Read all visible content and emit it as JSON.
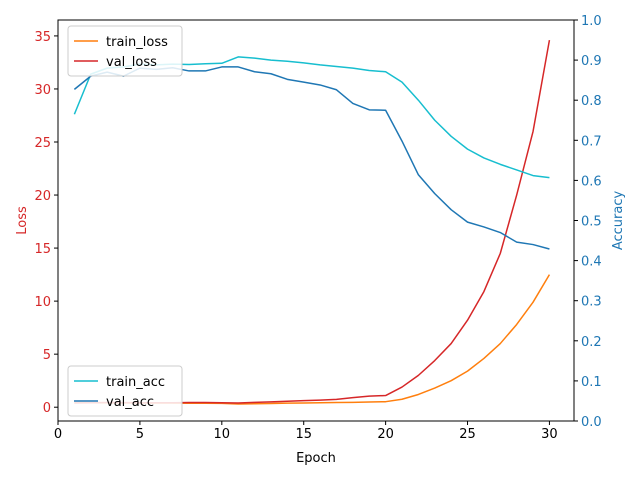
{
  "chart_data": {
    "type": "line",
    "title": "",
    "xlabel": "Epoch",
    "ylabel_left": "Loss",
    "ylabel_right": "Accuracy",
    "xlim": [
      0,
      31.5
    ],
    "ylim_left": [
      -1.3,
      36.5
    ],
    "ylim_right": [
      0.0,
      1.0
    ],
    "x_ticks": [
      0,
      5,
      10,
      15,
      20,
      25,
      30
    ],
    "y_left_ticks": [
      0,
      5,
      10,
      15,
      20,
      25,
      30,
      35
    ],
    "y_right_ticks": [
      0.0,
      0.1,
      0.2,
      0.3,
      0.4,
      0.5,
      0.6,
      0.7,
      0.8,
      0.9,
      1.0
    ],
    "grid": false,
    "x": [
      1,
      2,
      3,
      4,
      5,
      6,
      7,
      8,
      9,
      10,
      11,
      12,
      13,
      14,
      15,
      16,
      17,
      18,
      19,
      20,
      21,
      22,
      23,
      24,
      25,
      26,
      27,
      28,
      29,
      30
    ],
    "series_left": [
      {
        "name": "train_loss",
        "color": "#ff7f0e",
        "values": [
          0.45,
          0.42,
          0.41,
          0.4,
          0.4,
          0.39,
          0.38,
          0.37,
          0.37,
          0.36,
          0.3,
          0.33,
          0.35,
          0.38,
          0.4,
          0.42,
          0.44,
          0.46,
          0.49,
          0.52,
          0.75,
          1.2,
          1.8,
          2.5,
          3.4,
          4.6,
          6.0,
          7.8,
          9.9,
          12.5
        ]
      },
      {
        "name": "val_loss",
        "color": "#d62728",
        "values": [
          0.4,
          0.42,
          0.44,
          0.43,
          0.42,
          0.42,
          0.42,
          0.44,
          0.45,
          0.42,
          0.4,
          0.46,
          0.5,
          0.56,
          0.62,
          0.67,
          0.74,
          0.9,
          1.05,
          1.1,
          1.9,
          3.0,
          4.4,
          6.0,
          8.2,
          10.9,
          14.5,
          20.0,
          26.0,
          34.6
        ]
      }
    ],
    "series_right": [
      {
        "name": "train_acc",
        "color": "#17becf",
        "values": [
          0.765,
          0.865,
          0.88,
          0.883,
          0.89,
          0.888,
          0.89,
          0.889,
          0.891,
          0.892,
          0.908,
          0.905,
          0.9,
          0.897,
          0.893,
          0.888,
          0.884,
          0.88,
          0.874,
          0.871,
          0.845,
          0.8,
          0.75,
          0.71,
          0.678,
          0.656,
          0.64,
          0.626,
          0.612,
          0.607
        ]
      },
      {
        "name": "val_acc",
        "color": "#1f77b4",
        "values": [
          0.827,
          0.86,
          0.87,
          0.86,
          0.88,
          0.877,
          0.881,
          0.873,
          0.873,
          0.883,
          0.883,
          0.871,
          0.866,
          0.852,
          0.845,
          0.838,
          0.826,
          0.792,
          0.776,
          0.775,
          0.698,
          0.614,
          0.567,
          0.527,
          0.496,
          0.484,
          0.47,
          0.446,
          0.44,
          0.429
        ]
      }
    ],
    "legend_top_left": {
      "placement": "upper-left",
      "entries": [
        "train_loss",
        "val_loss"
      ]
    },
    "legend_bottom_left": {
      "placement": "lower-left",
      "entries": [
        "train_acc",
        "val_acc"
      ]
    },
    "left_axis_color": "#d62728",
    "right_axis_color": "#1f77b4"
  }
}
